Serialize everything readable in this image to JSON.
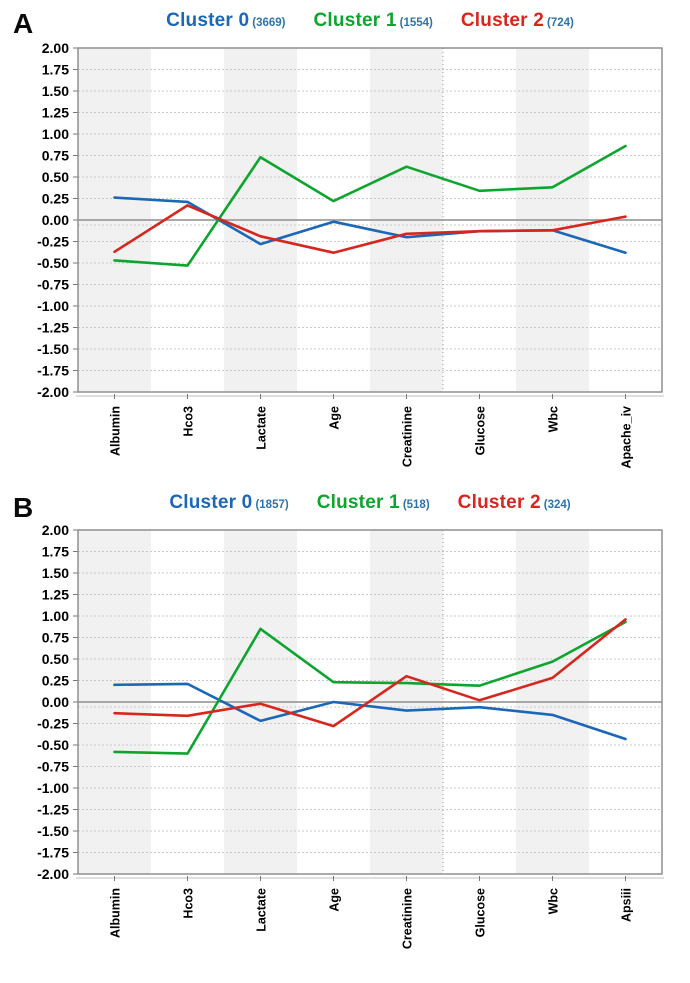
{
  "colors": {
    "cluster0_blue": "#1b67b8",
    "cluster1_green": "#0ea52f",
    "cluster2_red": "#d6271e",
    "count_text": "#2e74a8",
    "band_fill": "#f1f1f1",
    "grid_line": "#c9c9c9",
    "zero_line": "#9d9d9d",
    "frame": "#8f8f8f"
  },
  "panels": [
    {
      "letter": "A"
    },
    {
      "letter": "B"
    }
  ],
  "chart_data": [
    {
      "type": "line",
      "panel": "A",
      "legend_position": "top",
      "grid": true,
      "zero_line": true,
      "ylim": [
        -2.0,
        2.0
      ],
      "ytick_step": 0.25,
      "categories": [
        "Albumin",
        "Hco3",
        "Lactate",
        "Age",
        "Creatinine",
        "Glucose",
        "Wbc",
        "Apache_iv"
      ],
      "series": [
        {
          "name": "Cluster 0",
          "count_label": "(3669)",
          "color": "#1b67b8",
          "values": [
            0.26,
            0.21,
            -0.28,
            -0.02,
            -0.2,
            -0.13,
            -0.12,
            -0.38
          ]
        },
        {
          "name": "Cluster 1",
          "count_label": "(1554)",
          "color": "#0ea52f",
          "values": [
            -0.47,
            -0.53,
            0.73,
            0.22,
            0.62,
            0.34,
            0.38,
            0.86
          ]
        },
        {
          "name": "Cluster 2",
          "count_label": "(724)",
          "color": "#d6271e",
          "values": [
            -0.37,
            0.17,
            -0.19,
            -0.38,
            -0.16,
            -0.13,
            -0.12,
            0.04
          ]
        }
      ]
    },
    {
      "type": "line",
      "panel": "B",
      "legend_position": "top",
      "grid": true,
      "zero_line": true,
      "ylim": [
        -2.0,
        2.0
      ],
      "ytick_step": 0.25,
      "categories": [
        "Albumin",
        "Hco3",
        "Lactate",
        "Age",
        "Creatinine",
        "Glucose",
        "Wbc",
        "Apsiii"
      ],
      "series": [
        {
          "name": "Cluster 0",
          "count_label": "(1857)",
          "color": "#1b67b8",
          "values": [
            0.2,
            0.21,
            -0.22,
            0.0,
            -0.1,
            -0.06,
            -0.15,
            -0.43
          ]
        },
        {
          "name": "Cluster 1",
          "count_label": "(518)",
          "color": "#0ea52f",
          "values": [
            -0.58,
            -0.6,
            0.85,
            0.23,
            0.22,
            0.19,
            0.47,
            0.93
          ]
        },
        {
          "name": "Cluster 2",
          "count_label": "(324)",
          "color": "#d6271e",
          "values": [
            -0.13,
            -0.16,
            -0.02,
            -0.28,
            0.3,
            0.02,
            0.28,
            0.96
          ]
        }
      ]
    }
  ]
}
